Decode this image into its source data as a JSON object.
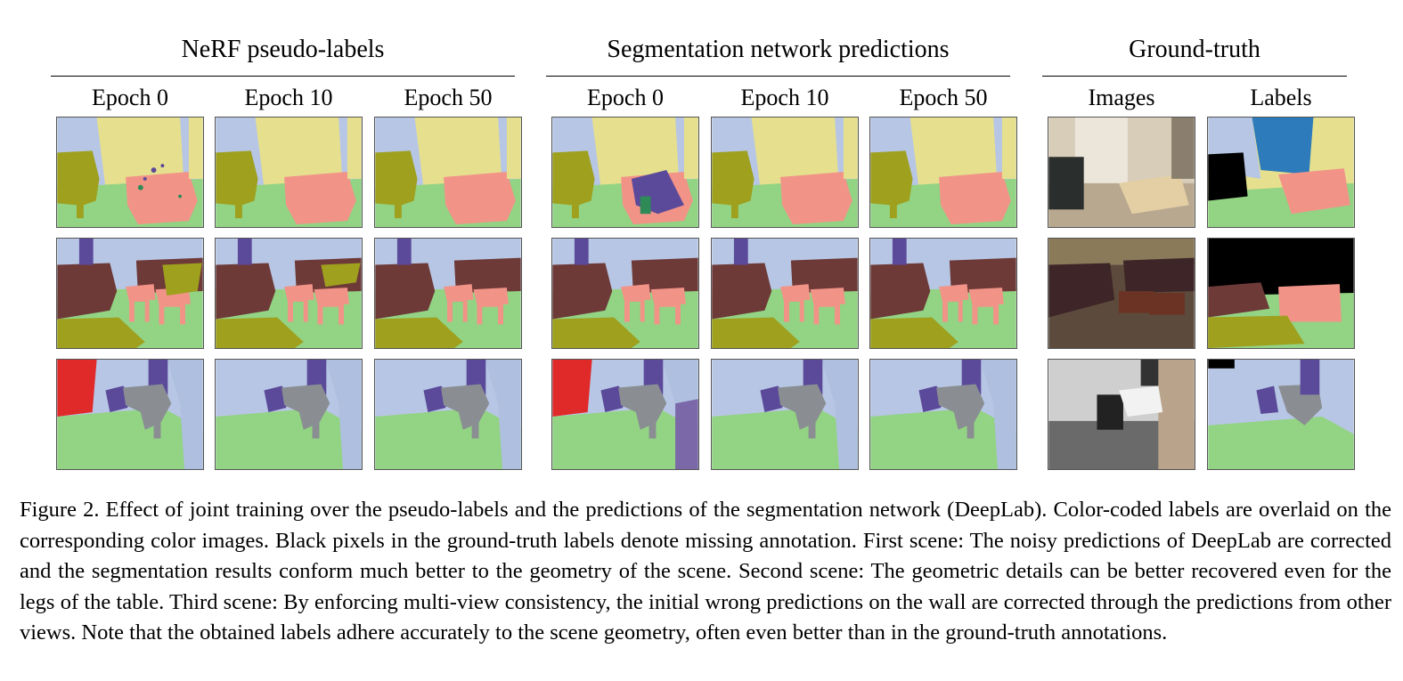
{
  "groups": {
    "nerf": "NeRF pseudo-labels",
    "seg": "Segmentation network predictions",
    "gt": "Ground-truth"
  },
  "columns": {
    "nerf": [
      "Epoch 0",
      "Epoch 10",
      "Epoch 50"
    ],
    "seg": [
      "Epoch 0",
      "Epoch 10",
      "Epoch 50"
    ],
    "gt": [
      "Images",
      "Labels"
    ]
  },
  "colors": {
    "wall": "#b7c6e4",
    "floor": "#93d384",
    "chair": "#9ea01e",
    "table": "#f29388",
    "curtain": "#e6e08e",
    "sofa": "#6e3a38",
    "bin": "#5b4a9a",
    "sink": "#8a8e92",
    "red_wall": "#e02a2a",
    "door": "#2d7bbb",
    "missing": "#000000"
  },
  "caption": "Figure 2. Effect of joint training over the pseudo-labels and the predictions of the segmentation network (DeepLab). Color-coded labels are overlaid on the corresponding color images. Black pixels in the ground-truth labels denote missing annotation. First scene: The noisy predictions of DeepLab are corrected and the segmentation results conform much better to the geometry of the scene. Second scene: The geometric details can be better recovered even for the legs of the table. Third scene: By enforcing multi-view consistency, the initial wrong predictions on the wall are corrected through the predictions from other views. Note that the obtained labels adhere accurately to the scene geometry, often even better than in the ground-truth annotations."
}
